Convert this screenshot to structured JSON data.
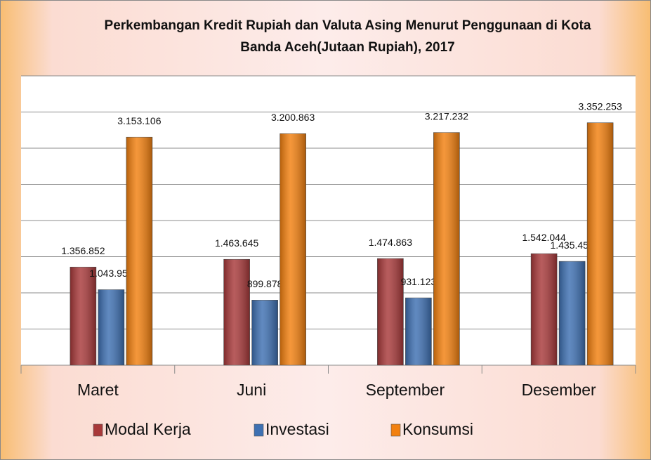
{
  "chart_data": {
    "type": "bar",
    "title": "Perkembangan Kredit Rupiah dan Valuta Asing Menurut Penggunaan di Kota",
    "subtitle": "Banda Aceh(Jutaan Rupiah), 2017",
    "categories": [
      "Maret",
      "Juni",
      "September",
      "Desember"
    ],
    "series": [
      {
        "name": "Modal Kerja",
        "color": "#a8393a",
        "values": [
          1356852,
          1463645,
          1474863,
          1542044
        ],
        "value_labels": [
          "1.356.852",
          "1.463.645",
          "1.474.863",
          "1.542.044"
        ]
      },
      {
        "name": "Investasi",
        "color": "#3e70b2",
        "values": [
          1043959,
          899878,
          931123,
          1435451
        ],
        "value_labels": [
          "1.043.959",
          "899.878",
          "931.123",
          "1.435.451"
        ]
      },
      {
        "name": "Konsumsi",
        "color": "#f2800f",
        "values": [
          3153106,
          3200863,
          3217232,
          3352253
        ],
        "value_labels": [
          "3.153.106",
          "3.200.863",
          "3.217.232",
          "3.352.253"
        ]
      }
    ],
    "ylim": [
      0,
      4000000
    ],
    "yticks": [
      0,
      500000,
      1000000,
      1500000,
      2000000,
      2500000,
      3000000,
      3500000,
      4000000
    ],
    "grid": true,
    "legend": "bottom"
  }
}
